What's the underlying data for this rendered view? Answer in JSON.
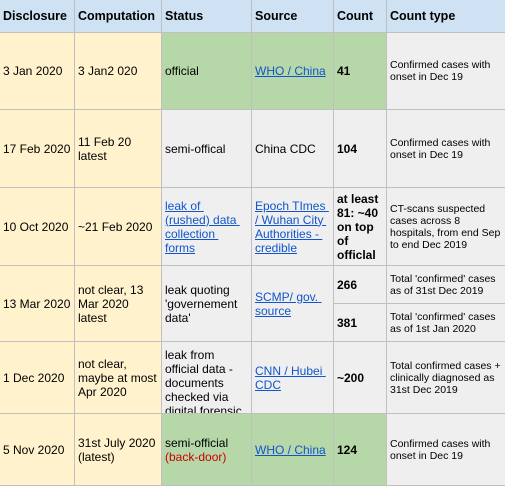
{
  "columns": {
    "disclosure": "Disclosure",
    "computation": "Computation",
    "status": "Status",
    "source": "Source",
    "count": "Count",
    "count_type": "Count type"
  },
  "rows": [
    {
      "disclosure": "3 Jan 2020",
      "computation": "3 Jan2 020",
      "status": "official",
      "source": "WHO / China",
      "count": "41",
      "count_type": "Confirmed cases with onset in Dec 19"
    },
    {
      "disclosure": "17 Feb 2020",
      "computation": "11 Feb 20\nlatest",
      "status": "semi-offical",
      "source": "China CDC",
      "count": "104",
      "count_type": "Confirmed cases with onset in Dec 19"
    },
    {
      "disclosure": "10 Oct 2020",
      "computation": "~21 Feb 2020",
      "status": "leak of (rushed) data collection forms",
      "source": "Epoch TImes / Wuhan City Authorities - credible",
      "count": "at least 81: ~40 on top of officlal",
      "count_type": "CT-scans suspected cases across 8 hospitals, from end Sep to end Dec 2019"
    },
    {
      "disclosure": "13 Mar 2020",
      "computation": "not clear, 13 Mar 2020 latest",
      "status": "leak quoting 'governement data'",
      "source": "SCMP/ gov. source",
      "count_a": "266",
      "count_type_a": "Total 'confirmed' cases as of 31st Dec 2019",
      "count_b": "381",
      "count_type_b": "Total 'confirmed' cases as of 1st Jan 2020"
    },
    {
      "disclosure": "1 Dec 2020",
      "computation": "not clear, maybe at most Apr 2020",
      "status": "leak from official data - documents checked via digital forensic",
      "source": "CNN / Hubei CDC",
      "count": "~200",
      "count_type": "Total confirmed cases + clinically diagnosed as 31st Dec 2019"
    },
    {
      "disclosure": "5 Nov 2020",
      "computation": "31st July 2020 (latest)",
      "status": "semi-official",
      "status_note": "(back-door)",
      "source": "WHO / China",
      "count": "124",
      "count_type": "Confirmed cases with onset in Dec 19"
    }
  ],
  "colors": {
    "header": "#cfe2f3",
    "yellow": "#fff2cc",
    "green": "#b6d7a8",
    "gray": "#efefef",
    "link": "#1155cc",
    "red": "#cc0000"
  }
}
